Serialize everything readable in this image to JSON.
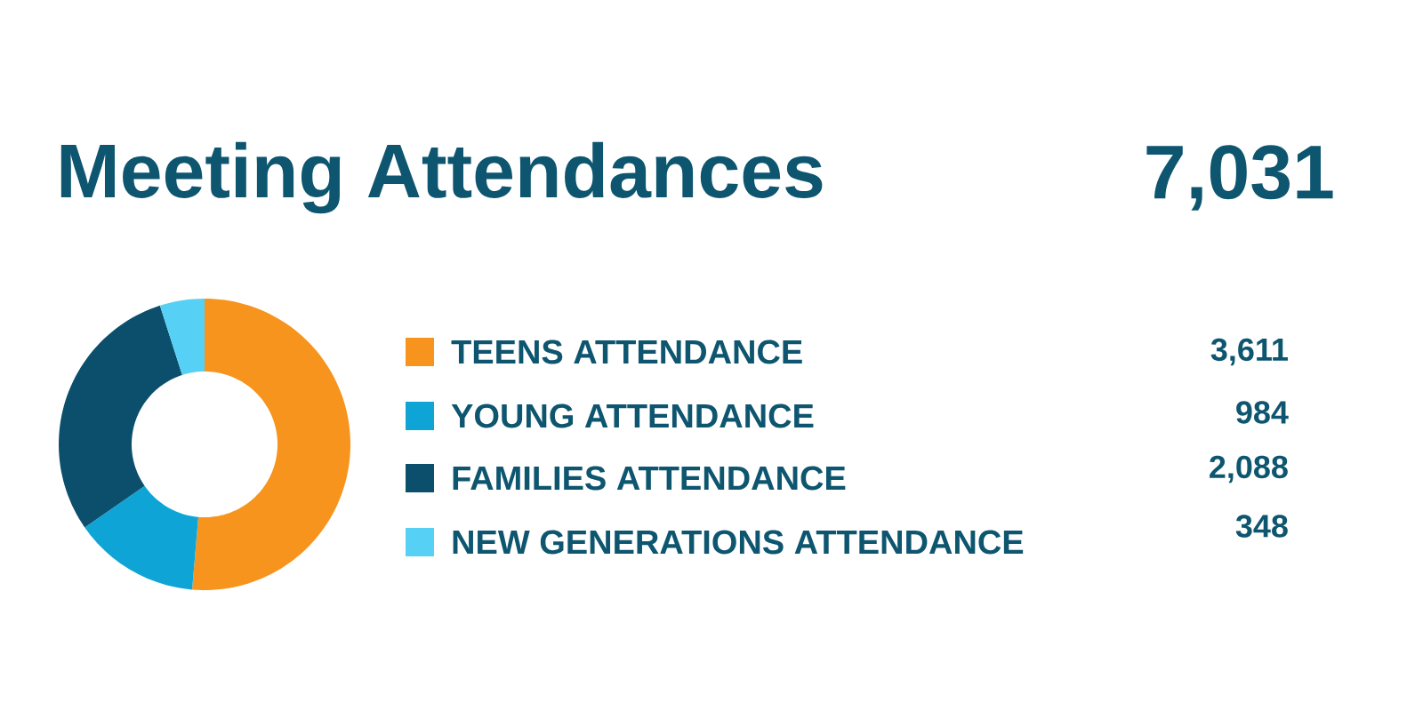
{
  "chart_data": {
    "type": "donut",
    "title": "Meeting Attendances",
    "categories": [
      "TEENS ATTENDANCE",
      "YOUNG ATTENDANCE",
      "FAMILIES ATTENDANCE",
      "NEW GENERATIONS ATTENDANCE"
    ],
    "values": [
      3611,
      984,
      2088,
      348
    ],
    "colors": [
      "#f7941d",
      "#0ea5d6",
      "#0b4f6c",
      "#56d0f5"
    ],
    "value_labels": [
      "3,611",
      "984",
      "2,088",
      "348"
    ],
    "annotations": [
      "7,031"
    ],
    "legend": "right"
  }
}
